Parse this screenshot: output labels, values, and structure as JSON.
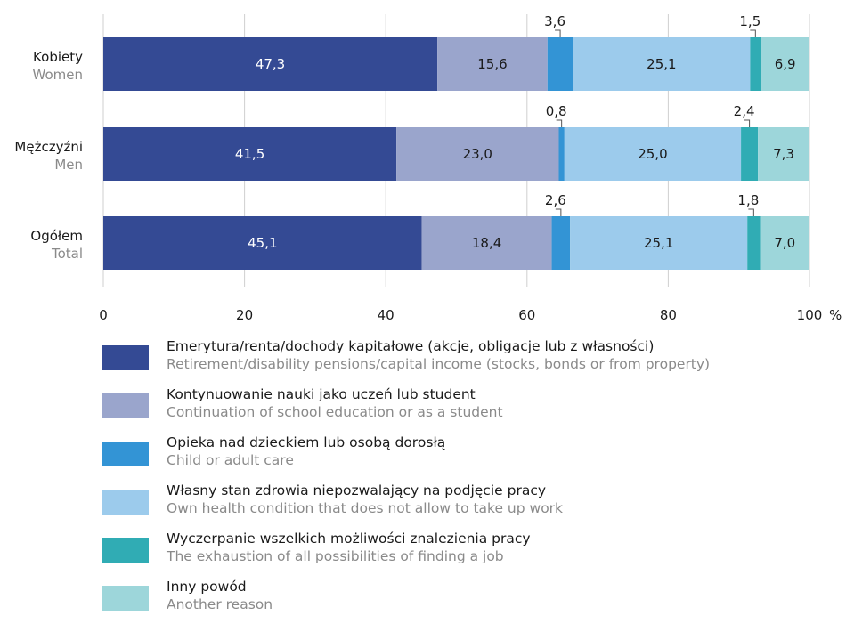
{
  "chart_data": {
    "type": "bar",
    "orientation": "horizontal",
    "stacked": true,
    "categories": [
      {
        "pl": "Kobiety",
        "en": "Women"
      },
      {
        "pl": "Mężczyźni",
        "en": "Men"
      },
      {
        "pl": "Ogółem",
        "en": "Total"
      }
    ],
    "series": [
      {
        "name_pl": "Emerytura/renta/dochody kapitałowe (akcje, obligacje lub z własności)",
        "name_en": "Retirement/disability pensions/capital income (stocks, bonds or from property)",
        "color": "#344a94",
        "values": [
          47.3,
          41.5,
          45.1
        ],
        "labels": [
          "47,3",
          "41,5",
          "45,1"
        ]
      },
      {
        "name_pl": "Kontynuowanie nauki jako uczeń lub student",
        "name_en": "Continuation of school education or as a student",
        "color": "#9aa5cc",
        "values": [
          15.6,
          23.0,
          18.4
        ],
        "labels": [
          "15,6",
          "23,0",
          "18,4"
        ]
      },
      {
        "name_pl": "Opieka nad dzieckiem lub osobą dorosłą",
        "name_en": "Child or adult care",
        "color": "#3394d5",
        "values": [
          3.6,
          0.8,
          2.6
        ],
        "labels": [
          "3,6",
          "0,8",
          "2,6"
        ]
      },
      {
        "name_pl": "Własny stan zdrowia niepozwalający na podjęcie pracy",
        "name_en": "Own health condition that does not allow to take up work",
        "color": "#9ccbec",
        "values": [
          25.1,
          25.0,
          25.1
        ],
        "labels": [
          "25,1",
          "25,0",
          "25,1"
        ]
      },
      {
        "name_pl": "Wyczerpanie wszelkich możliwości znalezienia pracy",
        "name_en": "The exhaustion of all possibilities of finding a job",
        "color": "#30acb4",
        "values": [
          1.5,
          2.4,
          1.8
        ],
        "labels": [
          "1,5",
          "2,4",
          "1,8"
        ]
      },
      {
        "name_pl": "Inny powód",
        "name_en": "Another reason",
        "color": "#9dd6da",
        "values": [
          6.9,
          7.3,
          7.0
        ],
        "labels": [
          "6,9",
          "7,3",
          "7,0"
        ]
      }
    ],
    "xlim": [
      0,
      100
    ],
    "xticks": [
      0,
      20,
      40,
      60,
      80,
      100
    ],
    "xtick_labels": [
      "0",
      "20",
      "40",
      "60",
      "80",
      "100"
    ],
    "x_unit": "%",
    "grid": "vertical",
    "legend_position": "bottom"
  }
}
